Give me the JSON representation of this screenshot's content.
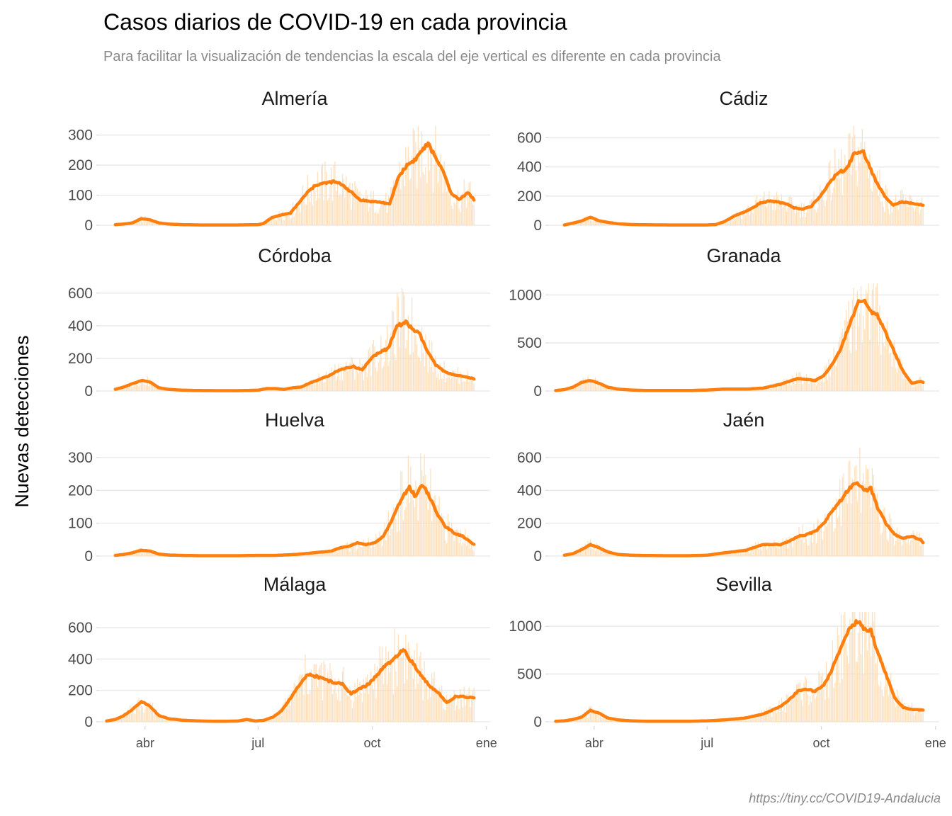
{
  "title": "Casos diarios de COVID-19 en cada provincia",
  "subtitle": "Para facilitar la visualización de tendencias la escala del eje vertical es diferente en cada provincia",
  "caption": "https://tiny.cc/COVID19-Andalucia",
  "colors": {
    "trend": "#ff7f0e",
    "bars": "#fdd9b0",
    "grid": "#ebebeb"
  },
  "chart_data": {
    "type": "line",
    "ylabel": "Nuevas detecciones",
    "x_axis": {
      "ticks": [
        "2020-04-01",
        "2020-07-01",
        "2020-10-01",
        "2021-01-01"
      ],
      "tick_labels": [
        "abr",
        "jul",
        "oct",
        "ene"
      ],
      "range": [
        "2020-02-24",
        "2021-01-04"
      ]
    },
    "grid": true,
    "facets": [
      {
        "name": "Almería",
        "yticks": [
          0,
          100,
          200,
          300
        ],
        "ylim": [
          0,
          330
        ],
        "series": {
          "dates": [
            "2020-03-08",
            "2020-03-15",
            "2020-03-22",
            "2020-03-29",
            "2020-04-05",
            "2020-04-12",
            "2020-04-20",
            "2020-05-01",
            "2020-05-15",
            "2020-06-01",
            "2020-06-15",
            "2020-07-01",
            "2020-07-05",
            "2020-07-12",
            "2020-07-20",
            "2020-07-27",
            "2020-08-03",
            "2020-08-10",
            "2020-08-17",
            "2020-08-24",
            "2020-08-31",
            "2020-09-07",
            "2020-09-14",
            "2020-09-21",
            "2020-09-28",
            "2020-10-05",
            "2020-10-10",
            "2020-10-15",
            "2020-10-22",
            "2020-10-29",
            "2020-11-05",
            "2020-11-10",
            "2020-11-15",
            "2020-11-22",
            "2020-11-29",
            "2020-12-03",
            "2020-12-10",
            "2020-12-17",
            "2020-12-22"
          ],
          "trend": [
            2,
            4,
            8,
            22,
            18,
            8,
            4,
            2,
            1,
            1,
            1,
            2,
            5,
            25,
            35,
            40,
            75,
            110,
            135,
            140,
            145,
            135,
            110,
            85,
            80,
            78,
            75,
            70,
            160,
            200,
            220,
            250,
            270,
            220,
            160,
            110,
            85,
            110,
            85
          ]
        }
      },
      {
        "name": "Cádiz",
        "yticks": [
          0,
          200,
          400,
          600
        ],
        "ylim": [
          0,
          680
        ],
        "series": {
          "dates": [
            "2020-03-08",
            "2020-03-15",
            "2020-03-22",
            "2020-03-29",
            "2020-04-05",
            "2020-04-12",
            "2020-04-20",
            "2020-05-01",
            "2020-05-15",
            "2020-06-01",
            "2020-06-15",
            "2020-07-01",
            "2020-07-08",
            "2020-07-15",
            "2020-07-22",
            "2020-07-29",
            "2020-08-05",
            "2020-08-12",
            "2020-08-19",
            "2020-08-26",
            "2020-09-02",
            "2020-09-09",
            "2020-09-16",
            "2020-09-23",
            "2020-09-30",
            "2020-10-07",
            "2020-10-14",
            "2020-10-21",
            "2020-10-28",
            "2020-11-04",
            "2020-11-08",
            "2020-11-14",
            "2020-11-21",
            "2020-11-28",
            "2020-12-05",
            "2020-12-12",
            "2020-12-19",
            "2020-12-22"
          ],
          "trend": [
            2,
            15,
            30,
            55,
            30,
            20,
            10,
            5,
            3,
            2,
            2,
            2,
            5,
            25,
            60,
            85,
            110,
            150,
            165,
            160,
            150,
            120,
            110,
            130,
            200,
            280,
            360,
            380,
            500,
            500,
            420,
            300,
            200,
            140,
            160,
            150,
            140,
            140
          ]
        }
      },
      {
        "name": "Córdoba",
        "yticks": [
          0,
          200,
          400,
          600
        ],
        "ylim": [
          0,
          660
        ],
        "series": {
          "dates": [
            "2020-03-08",
            "2020-03-15",
            "2020-03-22",
            "2020-03-29",
            "2020-04-05",
            "2020-04-12",
            "2020-04-20",
            "2020-05-01",
            "2020-05-15",
            "2020-06-01",
            "2020-06-15",
            "2020-07-01",
            "2020-07-08",
            "2020-07-15",
            "2020-07-22",
            "2020-07-29",
            "2020-08-05",
            "2020-08-12",
            "2020-08-19",
            "2020-08-26",
            "2020-09-02",
            "2020-09-09",
            "2020-09-16",
            "2020-09-23",
            "2020-09-30",
            "2020-10-07",
            "2020-10-14",
            "2020-10-21",
            "2020-10-28",
            "2020-11-04",
            "2020-11-08",
            "2020-11-14",
            "2020-11-21",
            "2020-11-28",
            "2020-12-05",
            "2020-12-12",
            "2020-12-19",
            "2020-12-22"
          ],
          "trend": [
            10,
            25,
            45,
            65,
            55,
            20,
            10,
            5,
            3,
            2,
            2,
            5,
            15,
            15,
            10,
            20,
            25,
            50,
            70,
            90,
            120,
            140,
            150,
            130,
            200,
            240,
            260,
            400,
            420,
            370,
            350,
            250,
            160,
            120,
            100,
            90,
            80,
            75
          ]
        }
      },
      {
        "name": "Granada",
        "yticks": [
          0,
          500,
          1000
        ],
        "ylim": [
          0,
          1120
        ],
        "series": {
          "dates": [
            "2020-03-01",
            "2020-03-08",
            "2020-03-15",
            "2020-03-22",
            "2020-03-29",
            "2020-04-05",
            "2020-04-12",
            "2020-04-20",
            "2020-05-01",
            "2020-05-15",
            "2020-06-01",
            "2020-06-15",
            "2020-07-01",
            "2020-07-15",
            "2020-08-01",
            "2020-08-15",
            "2020-08-29",
            "2020-09-05",
            "2020-09-12",
            "2020-09-19",
            "2020-09-26",
            "2020-10-03",
            "2020-10-10",
            "2020-10-17",
            "2020-10-24",
            "2020-10-31",
            "2020-11-05",
            "2020-11-10",
            "2020-11-15",
            "2020-11-22",
            "2020-11-29",
            "2020-12-06",
            "2020-12-13",
            "2020-12-20",
            "2020-12-22"
          ],
          "trend": [
            5,
            15,
            40,
            90,
            110,
            80,
            40,
            20,
            10,
            5,
            5,
            5,
            10,
            20,
            20,
            30,
            70,
            100,
            130,
            120,
            110,
            160,
            280,
            450,
            700,
            920,
            940,
            820,
            800,
            600,
            400,
            200,
            80,
            100,
            90
          ]
        }
      },
      {
        "name": "Huelva",
        "yticks": [
          0,
          100,
          200,
          300
        ],
        "ylim": [
          0,
          330
        ],
        "series": {
          "dates": [
            "2020-03-08",
            "2020-03-15",
            "2020-03-22",
            "2020-03-29",
            "2020-04-05",
            "2020-04-12",
            "2020-04-20",
            "2020-05-01",
            "2020-05-15",
            "2020-06-01",
            "2020-06-15",
            "2020-07-01",
            "2020-07-15",
            "2020-08-01",
            "2020-08-15",
            "2020-08-29",
            "2020-09-05",
            "2020-09-12",
            "2020-09-19",
            "2020-09-26",
            "2020-10-03",
            "2020-10-10",
            "2020-10-17",
            "2020-10-24",
            "2020-10-31",
            "2020-11-05",
            "2020-11-10",
            "2020-11-15",
            "2020-11-22",
            "2020-11-29",
            "2020-12-06",
            "2020-12-13",
            "2020-12-20",
            "2020-12-22"
          ],
          "trend": [
            2,
            5,
            10,
            18,
            15,
            6,
            3,
            2,
            1,
            1,
            1,
            2,
            2,
            5,
            10,
            15,
            25,
            30,
            40,
            35,
            40,
            60,
            110,
            170,
            210,
            180,
            220,
            190,
            130,
            90,
            70,
            60,
            40,
            35
          ]
        }
      },
      {
        "name": "Jaén",
        "yticks": [
          0,
          200,
          400,
          600
        ],
        "ylim": [
          0,
          660
        ],
        "series": {
          "dates": [
            "2020-03-08",
            "2020-03-15",
            "2020-03-22",
            "2020-03-29",
            "2020-04-05",
            "2020-04-12",
            "2020-04-20",
            "2020-05-01",
            "2020-05-15",
            "2020-06-01",
            "2020-06-15",
            "2020-07-01",
            "2020-07-15",
            "2020-08-01",
            "2020-08-15",
            "2020-08-29",
            "2020-09-05",
            "2020-09-12",
            "2020-09-19",
            "2020-09-26",
            "2020-10-03",
            "2020-10-10",
            "2020-10-17",
            "2020-10-24",
            "2020-10-31",
            "2020-11-05",
            "2020-11-10",
            "2020-11-15",
            "2020-11-22",
            "2020-11-29",
            "2020-12-06",
            "2020-12-13",
            "2020-12-20",
            "2020-12-22"
          ],
          "trend": [
            5,
            15,
            40,
            70,
            50,
            25,
            10,
            5,
            3,
            2,
            2,
            5,
            20,
            35,
            70,
            70,
            90,
            120,
            130,
            150,
            200,
            280,
            340,
            420,
            440,
            400,
            410,
            300,
            200,
            130,
            110,
            120,
            100,
            80
          ]
        }
      },
      {
        "name": "Málaga",
        "yticks": [
          0,
          200,
          400,
          600
        ],
        "ylim": [
          0,
          700
        ],
        "series": {
          "dates": [
            "2020-03-01",
            "2020-03-08",
            "2020-03-15",
            "2020-03-22",
            "2020-03-29",
            "2020-04-05",
            "2020-04-12",
            "2020-04-20",
            "2020-05-01",
            "2020-05-15",
            "2020-06-01",
            "2020-06-15",
            "2020-06-22",
            "2020-06-29",
            "2020-07-06",
            "2020-07-13",
            "2020-07-20",
            "2020-07-27",
            "2020-08-03",
            "2020-08-10",
            "2020-08-17",
            "2020-08-24",
            "2020-08-31",
            "2020-09-07",
            "2020-09-14",
            "2020-09-21",
            "2020-09-28",
            "2020-10-05",
            "2020-10-12",
            "2020-10-19",
            "2020-10-26",
            "2020-11-02",
            "2020-11-09",
            "2020-11-16",
            "2020-11-23",
            "2020-11-30",
            "2020-12-07",
            "2020-12-14",
            "2020-12-22"
          ],
          "trend": [
            5,
            15,
            40,
            80,
            130,
            100,
            40,
            20,
            10,
            5,
            3,
            5,
            15,
            5,
            10,
            30,
            70,
            150,
            230,
            300,
            290,
            270,
            250,
            240,
            180,
            210,
            240,
            300,
            360,
            400,
            460,
            380,
            300,
            230,
            190,
            120,
            160,
            160,
            150
          ]
        }
      },
      {
        "name": "Sevilla",
        "yticks": [
          0,
          500,
          1000
        ],
        "ylim": [
          0,
          1150
        ],
        "series": {
          "dates": [
            "2020-03-01",
            "2020-03-08",
            "2020-03-15",
            "2020-03-22",
            "2020-03-29",
            "2020-04-05",
            "2020-04-12",
            "2020-04-20",
            "2020-05-01",
            "2020-05-15",
            "2020-06-01",
            "2020-06-15",
            "2020-07-01",
            "2020-07-15",
            "2020-08-01",
            "2020-08-15",
            "2020-08-22",
            "2020-08-29",
            "2020-09-05",
            "2020-09-12",
            "2020-09-19",
            "2020-09-26",
            "2020-10-03",
            "2020-10-10",
            "2020-10-17",
            "2020-10-24",
            "2020-10-31",
            "2020-11-05",
            "2020-11-10",
            "2020-11-15",
            "2020-11-22",
            "2020-11-29",
            "2020-12-06",
            "2020-12-13",
            "2020-12-22"
          ],
          "trend": [
            5,
            10,
            25,
            50,
            120,
            90,
            40,
            20,
            10,
            5,
            5,
            5,
            10,
            20,
            40,
            80,
            120,
            160,
            230,
            320,
            340,
            320,
            380,
            560,
            780,
            1000,
            1050,
            960,
            950,
            750,
            500,
            250,
            150,
            130,
            120
          ]
        }
      }
    ]
  }
}
